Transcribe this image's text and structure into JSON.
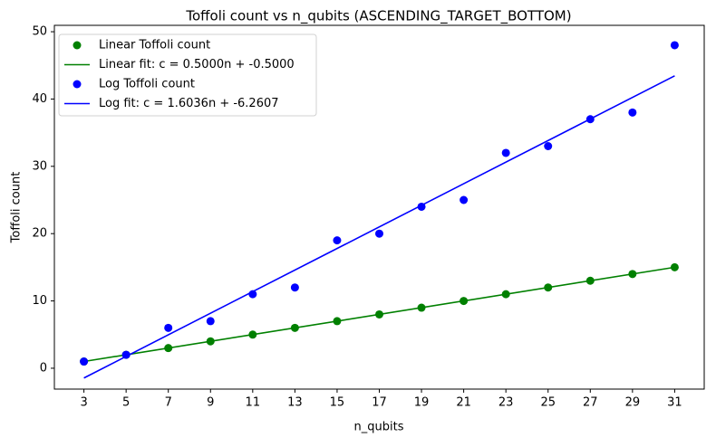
{
  "chart_data": {
    "type": "scatter",
    "title": "Toffoli count vs n_qubits (ASCENDING_TARGET_BOTTOM)",
    "x_label": "n_qubits",
    "y_label": "Toffoli count",
    "xlim": [
      1.6,
      32.4
    ],
    "ylim": [
      -3.1,
      50.95
    ],
    "xticks": [
      3,
      5,
      7,
      9,
      11,
      13,
      15,
      17,
      19,
      21,
      23,
      25,
      27,
      29,
      31
    ],
    "yticks": [
      0,
      10,
      20,
      30,
      40,
      50
    ],
    "legend": "upper left",
    "series": [
      {
        "name": "Linear Toffoli count",
        "type": "scatter",
        "color": "#008000",
        "x": [
          3,
          5,
          7,
          9,
          11,
          13,
          15,
          17,
          19,
          21,
          23,
          25,
          27,
          29,
          31
        ],
        "values": [
          1,
          2,
          3,
          4,
          5,
          6,
          7,
          8,
          9,
          10,
          11,
          12,
          13,
          14,
          15
        ]
      },
      {
        "name": "Linear fit: c = 0.5000n + -0.5000",
        "type": "line",
        "color": "#008000",
        "x": [
          3,
          31
        ],
        "values": [
          1,
          15
        ]
      },
      {
        "name": "Log Toffoli count",
        "type": "scatter",
        "color": "#0000ff",
        "x": [
          3,
          5,
          7,
          9,
          11,
          13,
          15,
          17,
          19,
          21,
          23,
          25,
          27,
          29,
          31
        ],
        "values": [
          1,
          2,
          6,
          7,
          11,
          12,
          19,
          20,
          24,
          25,
          32,
          33,
          37,
          38,
          48
        ]
      },
      {
        "name": "Log fit: c = 1.6036n + -6.2607",
        "type": "line",
        "color": "#0000ff",
        "x": [
          3,
          31
        ],
        "values": [
          -1.45,
          43.45
        ]
      }
    ]
  }
}
